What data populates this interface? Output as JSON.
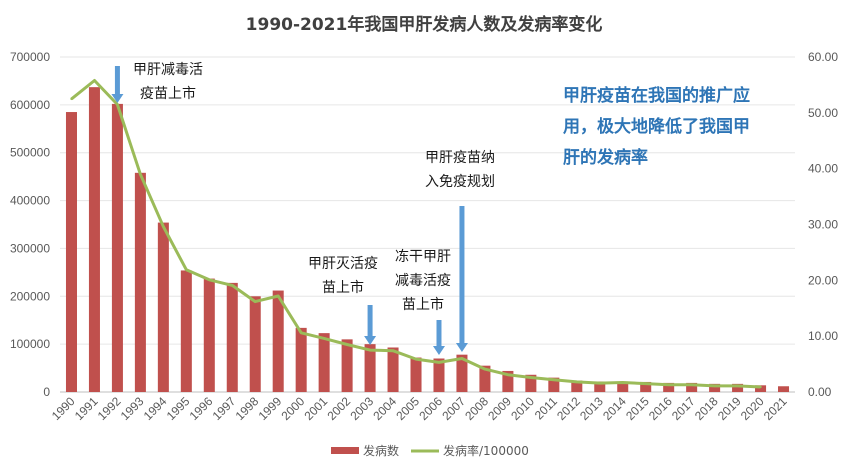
{
  "chart_data": {
    "type": "bar",
    "title": "1990-2021年我国甲肝发病人数及发病率变化",
    "categories": [
      "1990",
      "1991",
      "1992",
      "1993",
      "1994",
      "1995",
      "1996",
      "1997",
      "1998",
      "1999",
      "2000",
      "2001",
      "2002",
      "2003",
      "2004",
      "2005",
      "2006",
      "2007",
      "2008",
      "2009",
      "2010",
      "2011",
      "2012",
      "2013",
      "2014",
      "2015",
      "2016",
      "2017",
      "2018",
      "2019",
      "2020",
      "2021"
    ],
    "series": [
      {
        "name": "发病数",
        "type": "bar",
        "axis": "left",
        "color": "#c0504d",
        "values": [
          585000,
          637000,
          602000,
          458000,
          354000,
          254000,
          237000,
          228000,
          200000,
          212000,
          134000,
          123000,
          110000,
          100000,
          93000,
          72000,
          70000,
          78000,
          55000,
          44000,
          36000,
          30000,
          24000,
          22000,
          22000,
          21000,
          19000,
          19000,
          17000,
          17000,
          14000,
          12000
        ]
      },
      {
        "name": "发病率/100000",
        "type": "line",
        "axis": "right",
        "color": "#9bbb59",
        "values": [
          52.5,
          55.8,
          51.5,
          39.0,
          29.6,
          21.9,
          20.1,
          19.1,
          16.2,
          17.2,
          10.6,
          9.6,
          8.5,
          7.5,
          7.4,
          5.9,
          5.3,
          6.0,
          4.1,
          3.1,
          2.6,
          2.2,
          1.8,
          1.6,
          1.7,
          1.5,
          1.3,
          1.3,
          1.1,
          1.1,
          0.9,
          null
        ]
      }
    ],
    "y_left": {
      "min": 0,
      "max": 700000,
      "ticks": [
        "0",
        "100000",
        "200000",
        "300000",
        "400000",
        "500000",
        "600000",
        "700000"
      ]
    },
    "y_right": {
      "min": 0,
      "max": 60,
      "ticks": [
        "0.00",
        "10.00",
        "20.00",
        "30.00",
        "40.00",
        "50.00",
        "60.00"
      ]
    },
    "legend": {
      "placement": "bottom",
      "items": [
        "发病数",
        "发病率/100000"
      ]
    },
    "annotations": [
      {
        "lines": [
          "甲肝减毒活",
          "疫苗上市"
        ],
        "year": "1992",
        "arrow_from": 66,
        "arrow_to": 103
      },
      {
        "lines": [
          "甲肝灭活疫",
          "苗上市"
        ],
        "year": "2003",
        "arrow_from": 305,
        "arrow_to": 345
      },
      {
        "lines": [
          "冻干甲肝",
          "减毒活疫",
          "苗上市"
        ],
        "year": "2006",
        "arrow_from": 320,
        "arrow_to": 355
      },
      {
        "lines": [
          "甲肝疫苗纳",
          "入免疫规划"
        ],
        "year": "2007",
        "arrow_from": 206,
        "arrow_to": 352
      }
    ],
    "highlight_note": [
      "甲肝疫苗在我国的推广应",
      "用，极大地降低了我国甲",
      "肝的发病率"
    ]
  }
}
